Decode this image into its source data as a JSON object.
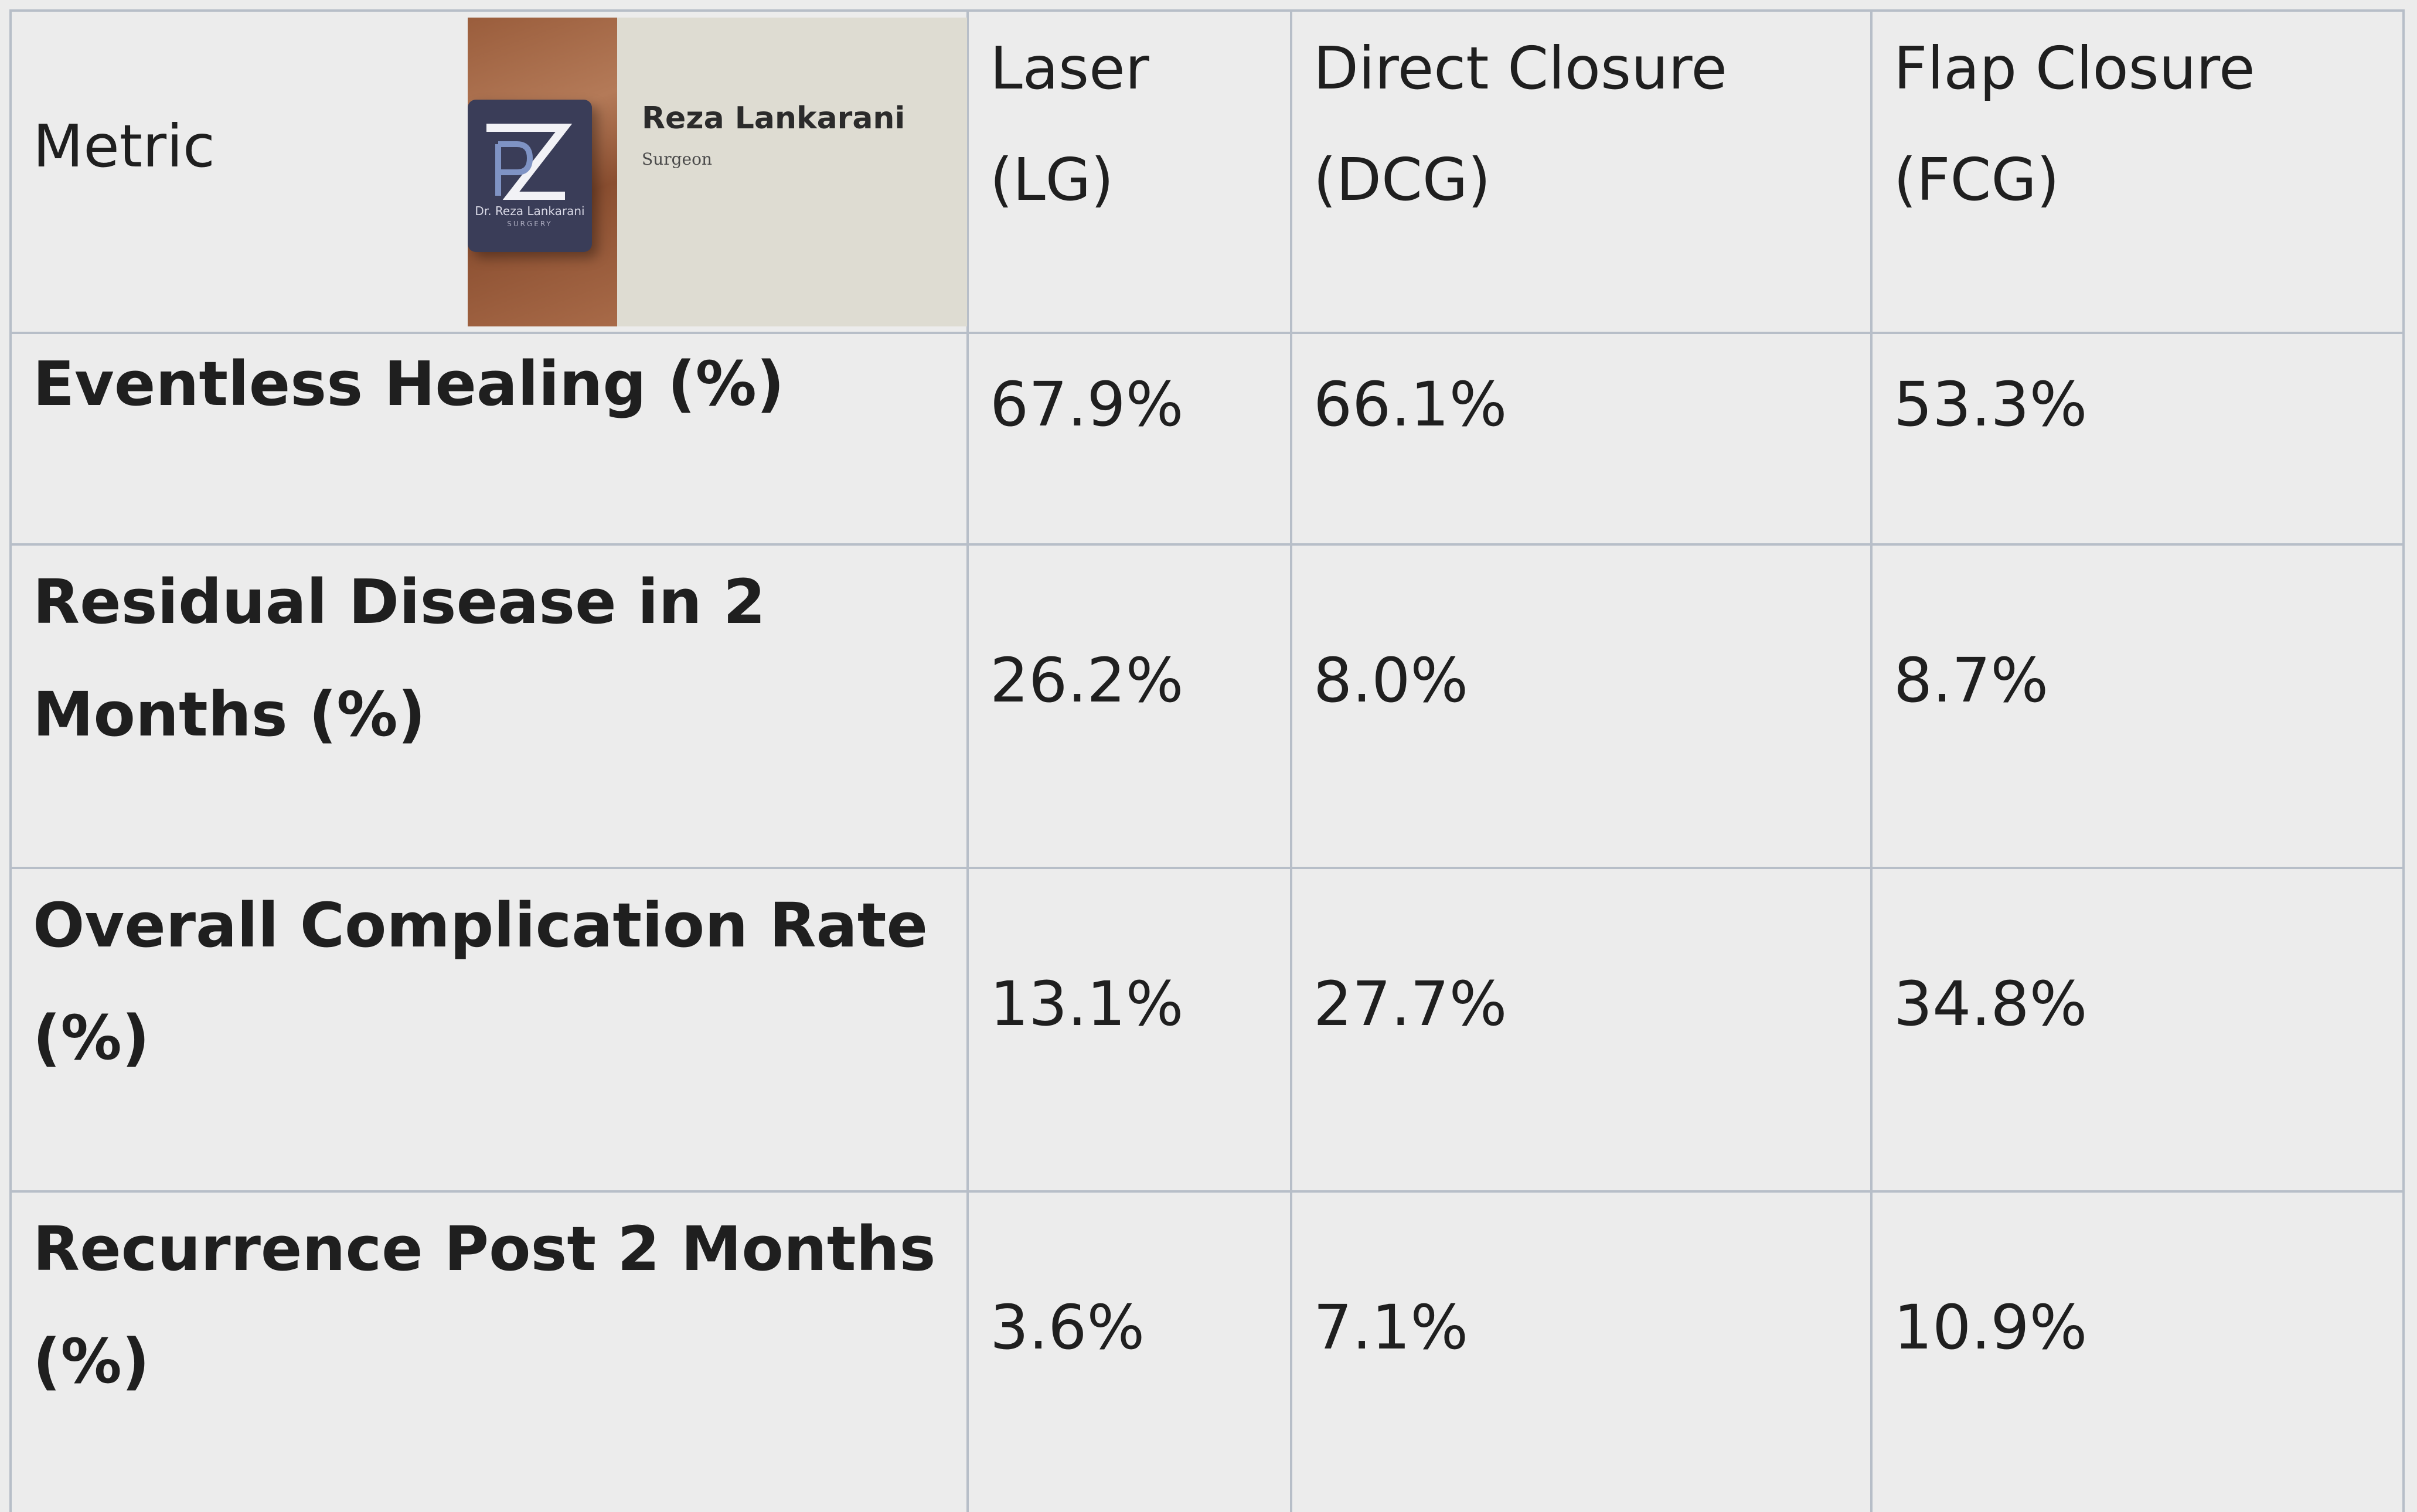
{
  "logo": {
    "name": "Reza Lankarani",
    "role": "Surgeon",
    "badge_text": "Dr. Reza Lankarani",
    "badge_subtext": "SURGERY"
  },
  "table": {
    "header": {
      "metric": "Metric",
      "col1_line1": "Laser",
      "col1_line2": "(LG)",
      "col2_line1": "Direct Closure",
      "col2_line2": "(DCG)",
      "col3_line1": "Flap Closure",
      "col3_line2": "(FCG)"
    },
    "rows": [
      {
        "label_line1": "Eventless Healing (%)",
        "label_line2": "",
        "laser": "67.9%",
        "direct": "66.1%",
        "flap": "53.3%"
      },
      {
        "label_line1": "Residual Disease in 2",
        "label_line2": "Months (%)",
        "laser": "26.2%",
        "direct": "8.0%",
        "flap": "8.7%"
      },
      {
        "label_line1": "Overall Complication Rate",
        "label_line2": "(%)",
        "laser": "13.1%",
        "direct": "27.7%",
        "flap": "34.8%"
      },
      {
        "label_line1": "Recurrence Post 2 Months",
        "label_line2": "(%)",
        "laser": "3.6%",
        "direct": "7.1%",
        "flap": "10.9%"
      }
    ]
  }
}
